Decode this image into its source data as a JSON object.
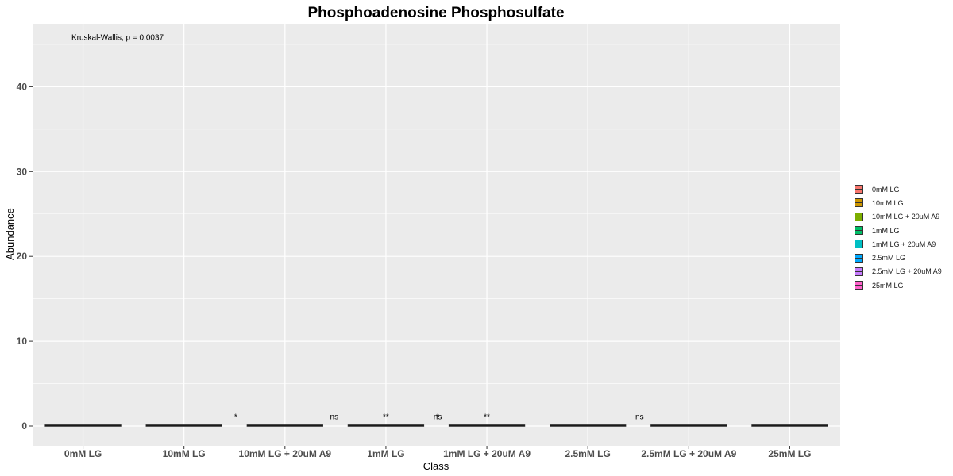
{
  "chart_data": {
    "type": "box",
    "title": "Phosphoadenosine Phosphosulfate",
    "xlabel": "Class",
    "ylabel": "Abundance",
    "categories": [
      "0mM LG",
      "10mM LG",
      "10mM LG + 20uM A9",
      "1mM LG",
      "1mM LG + 20uM A9",
      "2.5mM LG",
      "2.5mM LG + 20uM A9",
      "25mM LG"
    ],
    "yticks": [
      0,
      10,
      20,
      30,
      40
    ],
    "ylim": [
      -2.5,
      47
    ],
    "grid": true,
    "legend_position": "right",
    "boxes": [
      {
        "category": "0mM LG",
        "min": 0.0,
        "q1": 0.0,
        "median": 0.05,
        "q3": 0.1,
        "max": 0.1,
        "color": "#F8766D"
      },
      {
        "category": "10mM LG",
        "min": 0.0,
        "q1": 0.0,
        "median": 0.05,
        "q3": 0.1,
        "max": 0.1,
        "color": "#CD9600"
      },
      {
        "category": "10mM LG + 20uM A9",
        "min": 0.0,
        "q1": 0.0,
        "median": 0.05,
        "q3": 0.1,
        "max": 0.1,
        "color": "#7CAE00"
      },
      {
        "category": "1mM LG",
        "min": 0.0,
        "q1": 0.0,
        "median": 0.05,
        "q3": 0.1,
        "max": 0.1,
        "color": "#00BE67"
      },
      {
        "category": "1mM LG + 20uM A9",
        "min": 0.0,
        "q1": 0.0,
        "median": 0.05,
        "q3": 0.1,
        "max": 0.1,
        "color": "#00BFC4"
      },
      {
        "category": "2.5mM LG",
        "min": 0.0,
        "q1": 0.0,
        "median": 0.05,
        "q3": 0.1,
        "max": 0.1,
        "color": "#00A9FF"
      },
      {
        "category": "2.5mM LG + 20uM A9",
        "min": 0.0,
        "q1": 0.0,
        "median": 0.05,
        "q3": 0.1,
        "max": 0.1,
        "color": "#C77CFF"
      },
      {
        "category": "25mM LG",
        "min": 0.0,
        "q1": 0.0,
        "median": 0.05,
        "q3": 0.1,
        "max": 0.1,
        "color": "#FF61CC"
      }
    ],
    "annotations": [
      {
        "text": "Kruskal-Wallis, p = 0.0037",
        "x": "0mM LG",
        "y": 45.5
      },
      {
        "text": "*",
        "x": "10mM LG + 20uM A9",
        "y": 0.8
      },
      {
        "text": "ns",
        "x": "10mM LG + 20uM A9",
        "y": 0.8
      },
      {
        "text": "**",
        "x": "1mM LG",
        "y": 0.8
      },
      {
        "text": "ns",
        "x": "1mM LG + 20uM A9",
        "y": 0.8
      },
      {
        "text": "**",
        "x": "1mM LG + 20uM A9",
        "y": 0.8
      },
      {
        "text": "*",
        "x": "1mM LG + 20uM A9",
        "y": 0.8
      },
      {
        "text": "ns",
        "x": "2.5mM LG + 20uM A9",
        "y": 0.8
      }
    ],
    "legend": [
      {
        "label": "0mM LG",
        "color": "#F8766D"
      },
      {
        "label": "10mM LG",
        "color": "#CD9600"
      },
      {
        "label": "10mM LG + 20uM A9",
        "color": "#7CAE00"
      },
      {
        "label": "1mM LG",
        "color": "#00BE67"
      },
      {
        "label": "1mM LG + 20uM A9",
        "color": "#00BFC4"
      },
      {
        "label": "2.5mM LG",
        "color": "#00A9FF"
      },
      {
        "label": "2.5mM LG + 20uM A9",
        "color": "#C77CFF"
      },
      {
        "label": "25mM LG",
        "color": "#FF61CC"
      }
    ]
  }
}
